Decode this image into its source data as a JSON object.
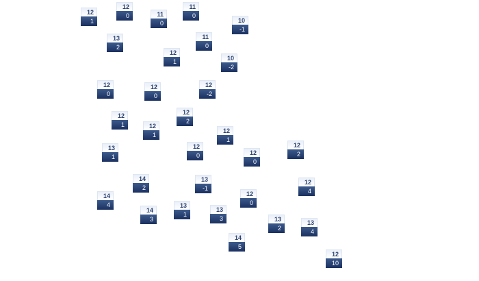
{
  "nodes": [
    {
      "top": "12",
      "bottom": "1"
    },
    {
      "top": "12",
      "bottom": "0"
    },
    {
      "top": "11",
      "bottom": "0"
    },
    {
      "top": "11",
      "bottom": "0"
    },
    {
      "top": "10",
      "bottom": "-1"
    },
    {
      "top": "13",
      "bottom": "2"
    },
    {
      "top": "11",
      "bottom": "0"
    },
    {
      "top": "12",
      "bottom": "1"
    },
    {
      "top": "10",
      "bottom": "-2"
    },
    {
      "top": "12",
      "bottom": "0"
    },
    {
      "top": "12",
      "bottom": "0"
    },
    {
      "top": "12",
      "bottom": "-2"
    },
    {
      "top": "12",
      "bottom": "1"
    },
    {
      "top": "12",
      "bottom": "2"
    },
    {
      "top": "12",
      "bottom": "1"
    },
    {
      "top": "12",
      "bottom": "1"
    },
    {
      "top": "13",
      "bottom": "1"
    },
    {
      "top": "12",
      "bottom": "0"
    },
    {
      "top": "12",
      "bottom": "0"
    },
    {
      "top": "12",
      "bottom": "2"
    },
    {
      "top": "14",
      "bottom": "2"
    },
    {
      "top": "13",
      "bottom": "-1"
    },
    {
      "top": "12",
      "bottom": "4"
    },
    {
      "top": "14",
      "bottom": "4"
    },
    {
      "top": "12",
      "bottom": "0"
    },
    {
      "top": "14",
      "bottom": "3"
    },
    {
      "top": "13",
      "bottom": "1"
    },
    {
      "top": "13",
      "bottom": "3"
    },
    {
      "top": "13",
      "bottom": "2"
    },
    {
      "top": "13",
      "bottom": "4"
    },
    {
      "top": "14",
      "bottom": "5"
    },
    {
      "top": "12",
      "bottom": "10"
    }
  ],
  "colors": {
    "header_text": "#2c4270",
    "body_bg": "#1f3566"
  }
}
